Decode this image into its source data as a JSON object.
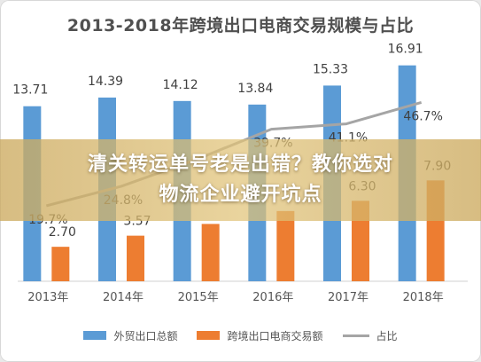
{
  "title": "2013-2018年跨境出口电商交易规模与占比",
  "banner": {
    "line1": "清关转运单号老是出错？教你选对",
    "line2": "物流企业避开坑点"
  },
  "colors": {
    "export": "#5b9bd5",
    "ecommerce": "#ed7d31",
    "ratio": "#a5a5a5"
  },
  "chart_data": {
    "type": "bar",
    "categories": [
      "2013年",
      "2014年",
      "2015年",
      "2016年",
      "2017年",
      "2018年"
    ],
    "series": [
      {
        "name": "外贸出口总额",
        "type": "bar",
        "values": [
          13.71,
          14.39,
          14.12,
          13.84,
          15.33,
          16.91
        ],
        "labels": [
          "13.71",
          "14.39",
          "14.12",
          "13.84",
          "15.33",
          "16.91"
        ]
      },
      {
        "name": "跨境出口电商交易额",
        "type": "bar",
        "values": [
          2.7,
          3.57,
          4.49,
          5.5,
          6.3,
          7.9
        ],
        "labels": [
          "2.70",
          "3.57",
          "",
          "",
          "6.30",
          "7.90"
        ]
      },
      {
        "name": "占比",
        "type": "line",
        "values": [
          19.7,
          24.8,
          31.8,
          39.7,
          41.1,
          46.7
        ],
        "labels": [
          "19.7%",
          "24.8%",
          "",
          "39.7%",
          "41.1%",
          "46.7%"
        ]
      }
    ],
    "ylim": [
      0,
      18
    ],
    "ratio_lim": [
      0,
      60
    ],
    "legend": "bottom",
    "grid": false
  }
}
